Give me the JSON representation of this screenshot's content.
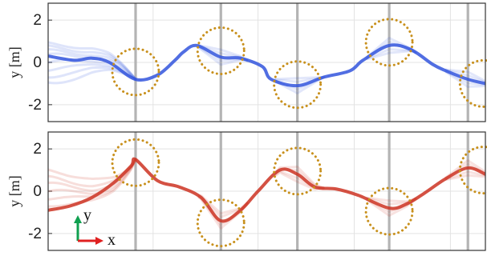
{
  "chart_data": [
    {
      "type": "line",
      "panel": "top",
      "ylabel": "y [m]",
      "ylim": [
        -2.8,
        2.8
      ],
      "yticks": [
        "2",
        "0",
        "-2"
      ],
      "ytick_values": [
        2,
        0,
        -2
      ],
      "xlim": [
        0,
        100
      ],
      "xgrid": [
        24,
        48,
        70,
        92
      ],
      "segment_markers_x": [
        20,
        39.5,
        57,
        78,
        96
      ],
      "color": "#3355dd",
      "series": [
        {
          "x": [
            0,
            6,
            10,
            14,
            20,
            25,
            29,
            31,
            34,
            39.5,
            44,
            49,
            51,
            57,
            63,
            69,
            72,
            78,
            83,
            88,
            91,
            96,
            100
          ],
          "y": [
            0.3,
            0.1,
            0.2,
            0.0,
            -0.8,
            -0.6,
            0.1,
            0.5,
            0.8,
            0.25,
            0.2,
            -0.2,
            -0.8,
            -1.1,
            -0.7,
            -0.4,
            0.1,
            0.8,
            0.6,
            -0.1,
            -0.4,
            -0.8,
            -1.0
          ]
        }
      ],
      "ghost_starts_y": [
        0.9,
        0.7,
        0.5,
        0.3,
        0.0,
        -0.3,
        -0.6,
        -0.9
      ],
      "highlight_circles": [
        {
          "x": 20,
          "y": -0.45
        },
        {
          "x": 39.5,
          "y": 0.55
        },
        {
          "x": 57,
          "y": -1.05
        },
        {
          "x": 78,
          "y": 0.95
        },
        {
          "x": 99.5,
          "y": -1.0
        }
      ]
    },
    {
      "type": "line",
      "panel": "bottom",
      "ylabel": "y [m]",
      "ylim": [
        -2.8,
        2.8
      ],
      "yticks": [
        "2",
        "0",
        "-2"
      ],
      "ytick_values": [
        2,
        0,
        -2
      ],
      "xlim": [
        0,
        100
      ],
      "xgrid": [
        24,
        48,
        70,
        92
      ],
      "segment_markers_x": [
        20,
        39.5,
        57,
        78,
        96
      ],
      "color": "#cc3322",
      "series": [
        {
          "x": [
            0,
            5,
            10,
            15,
            19,
            20,
            25,
            30,
            35,
            39.5,
            44,
            48,
            53,
            57,
            61,
            66,
            71,
            78,
            82,
            86,
            91,
            96,
            100
          ],
          "y": [
            -0.9,
            -0.7,
            -0.3,
            0.4,
            1.2,
            1.5,
            0.5,
            0.2,
            -0.3,
            -1.4,
            -0.9,
            0.0,
            1.0,
            0.8,
            0.2,
            0.1,
            -0.2,
            -0.8,
            -0.6,
            -0.1,
            0.6,
            1.1,
            0.8
          ]
        }
      ],
      "ghost_starts_y": [
        1.0,
        0.6,
        0.3,
        0.0,
        -0.3,
        -0.6
      ],
      "highlight_circles": [
        {
          "x": 20,
          "y": 1.35
        },
        {
          "x": 39.5,
          "y": -1.5
        },
        {
          "x": 57,
          "y": 0.95
        },
        {
          "x": 78,
          "y": -0.95
        },
        {
          "x": 99.5,
          "y": 1.0
        }
      ]
    }
  ],
  "direction_indicator": {
    "x_label": "x",
    "y_label": "y",
    "x_color": "#e02020",
    "y_color": "#10a050"
  },
  "circle_color": "#c8901c",
  "marker_line_color": "#b4b4b4"
}
